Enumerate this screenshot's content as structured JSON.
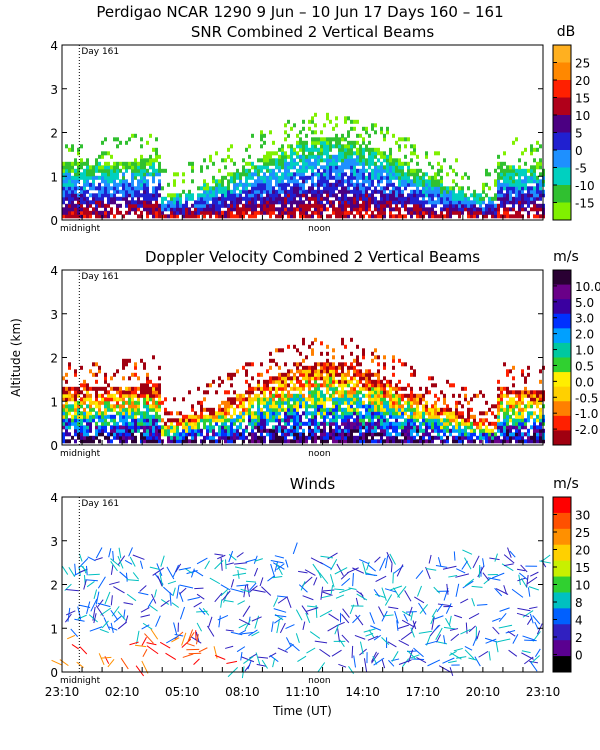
{
  "figure": {
    "title": "Perdigao NCAR 1290   9 Jun – 10 Jun 17 Days 160 – 161"
  },
  "chart_data": [
    {
      "type": "heatmap",
      "title": "SNR Combined 2 Vertical Beams",
      "ylabel": "",
      "ylim": [
        0,
        4
      ],
      "yticks": [
        "0",
        "1",
        "2",
        "3",
        "4"
      ],
      "xmarkers": {
        "midnight": "midnight",
        "noon": "noon",
        "day": "Day 161"
      },
      "colorbar": {
        "unit": "dB",
        "labels": [
          "25",
          "20",
          "15",
          "10",
          "5",
          "0",
          "-5",
          "-10",
          "-15"
        ],
        "colors": [
          "#ffb020",
          "#ff8800",
          "#ff2000",
          "#b0001a",
          "#4b0082",
          "#2020d0",
          "#1e90ff",
          "#00d0c0",
          "#30c030",
          "#80f000"
        ]
      }
    },
    {
      "type": "heatmap",
      "title": "Doppler Velocity Combined 2 Vertical Beams",
      "ylabel": "Altitude (km)",
      "ylim": [
        0,
        4
      ],
      "yticks": [
        "0",
        "1",
        "2",
        "3",
        "4"
      ],
      "xmarkers": {
        "midnight": "midnight",
        "noon": "noon",
        "day": "Day 161"
      },
      "colorbar": {
        "unit": "m/s",
        "labels": [
          "10.0",
          "5.0",
          "3.0",
          "2.0",
          "1.0",
          "0.5",
          "0.0",
          "-0.5",
          "-1.0",
          "-2.0"
        ],
        "colors": [
          "#2a0033",
          "#6a0088",
          "#3a00a0",
          "#0030ff",
          "#00a0ff",
          "#00c8a0",
          "#30d030",
          "#ffee00",
          "#ffd000",
          "#ff8000",
          "#ff2000",
          "#a00010"
        ]
      }
    },
    {
      "type": "scatter",
      "title": "Winds",
      "xlabel": "Time (UT)",
      "ylim": [
        0,
        4
      ],
      "yticks": [
        "0",
        "1",
        "2",
        "3",
        "4"
      ],
      "xticks": [
        "23:10",
        "02:10",
        "05:10",
        "08:10",
        "11:10",
        "14:10",
        "17:10",
        "20:10",
        "23:10"
      ],
      "xmarkers": {
        "midnight": "midnight",
        "noon": "noon",
        "day": "Day 161"
      },
      "colorbar": {
        "unit": "m/s",
        "labels": [
          "30",
          "25",
          "20",
          "15",
          "10",
          "8",
          "4",
          "2",
          "0"
        ],
        "colors": [
          "#ff0000",
          "#ff5000",
          "#ff9000",
          "#ffd000",
          "#c8f000",
          "#30d030",
          "#00c0c0",
          "#0060ff",
          "#3020c0",
          "#5a0090",
          "#000000"
        ]
      }
    }
  ]
}
